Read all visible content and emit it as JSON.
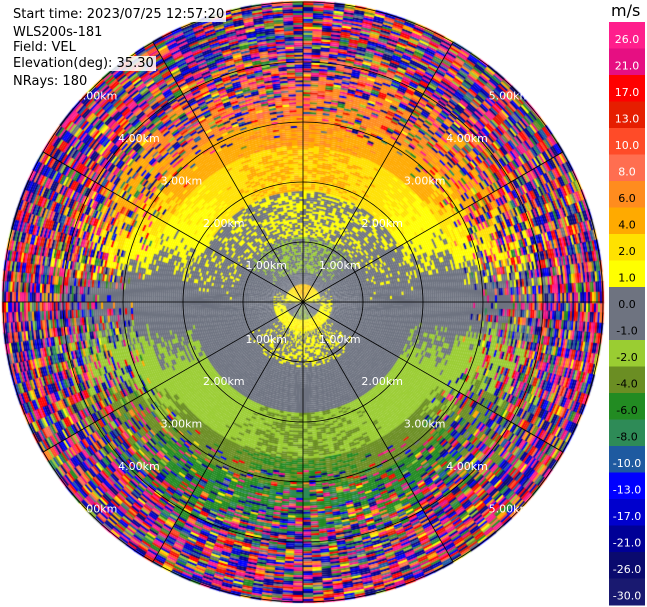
{
  "header": {
    "start_time": "Start time: 2023/07/25 12:57:20",
    "instrument": "WLS200s-181",
    "field": "Field: VEL",
    "elevation": "Elevation(deg): 35.30",
    "nrays": "NRays: 180"
  },
  "colorbar": {
    "unit": "m/s",
    "ticks": [
      "26.0",
      "21.0",
      "17.0",
      "13.0",
      "10.0",
      "8.0",
      "6.0",
      "4.0",
      "2.0",
      "1.0",
      "0.0",
      "-1.0",
      "-2.0",
      "-4.0",
      "-6.0",
      "-8.0",
      "-10.0",
      "-13.0",
      "-17.0",
      "-21.0",
      "-26.0",
      "-30.0"
    ],
    "colors": [
      "#ff1e8c",
      "#e60f82",
      "#ff0000",
      "#e61e00",
      "#ff4b28",
      "#ff6e50",
      "#ff8c1e",
      "#ffaa00",
      "#ffe100",
      "#ffff00",
      "#6e7380",
      "#6e7380",
      "#9acd32",
      "#6b8e23",
      "#228b22",
      "#2e8b57",
      "#1e5aa0",
      "#0000ff",
      "#0000cd",
      "#000096",
      "#0a0a6e",
      "#191970"
    ]
  },
  "chart_data": {
    "type": "heatmap",
    "projection": "polar",
    "field": "VEL",
    "elevation_deg": 35.3,
    "nrays": 180,
    "range_rings_km": [
      1.0,
      2.0,
      3.0,
      4.0,
      5.0
    ],
    "range_ring_labels": [
      "1.00km",
      "2.00km",
      "3.00km",
      "4.00km",
      "5.00km"
    ],
    "spoke_angle_deg": 30,
    "max_range_km": 5.0,
    "pattern_bands": [
      {
        "r0_km": 0.0,
        "r1_km": 0.3,
        "north_half_ms": 2.0,
        "south_half_ms": -2.0
      },
      {
        "r0_km": 0.3,
        "r1_km": 0.5,
        "north_half_ms": -1.0,
        "south_half_ms": 1.0
      },
      {
        "r0_km": 0.5,
        "r1_km": 1.1,
        "north_half_ms": -2.0,
        "south_half_ms": 0.0
      },
      {
        "r0_km": 1.1,
        "r1_km": 1.85,
        "north_half_ms": 0.0,
        "south_half_ms": -1.0
      },
      {
        "r0_km": 1.85,
        "r1_km": 2.6,
        "north_half_ms": 2.0,
        "south_half_ms": -4.0
      },
      {
        "r0_km": 2.6,
        "r1_km": 3.1,
        "north_half_ms": 4.0,
        "south_half_ms": -6.0
      },
      {
        "r0_km": 3.1,
        "r1_km": 5.0,
        "north_half_ms": 6.0,
        "south_half_ms": -8.0
      }
    ]
  }
}
